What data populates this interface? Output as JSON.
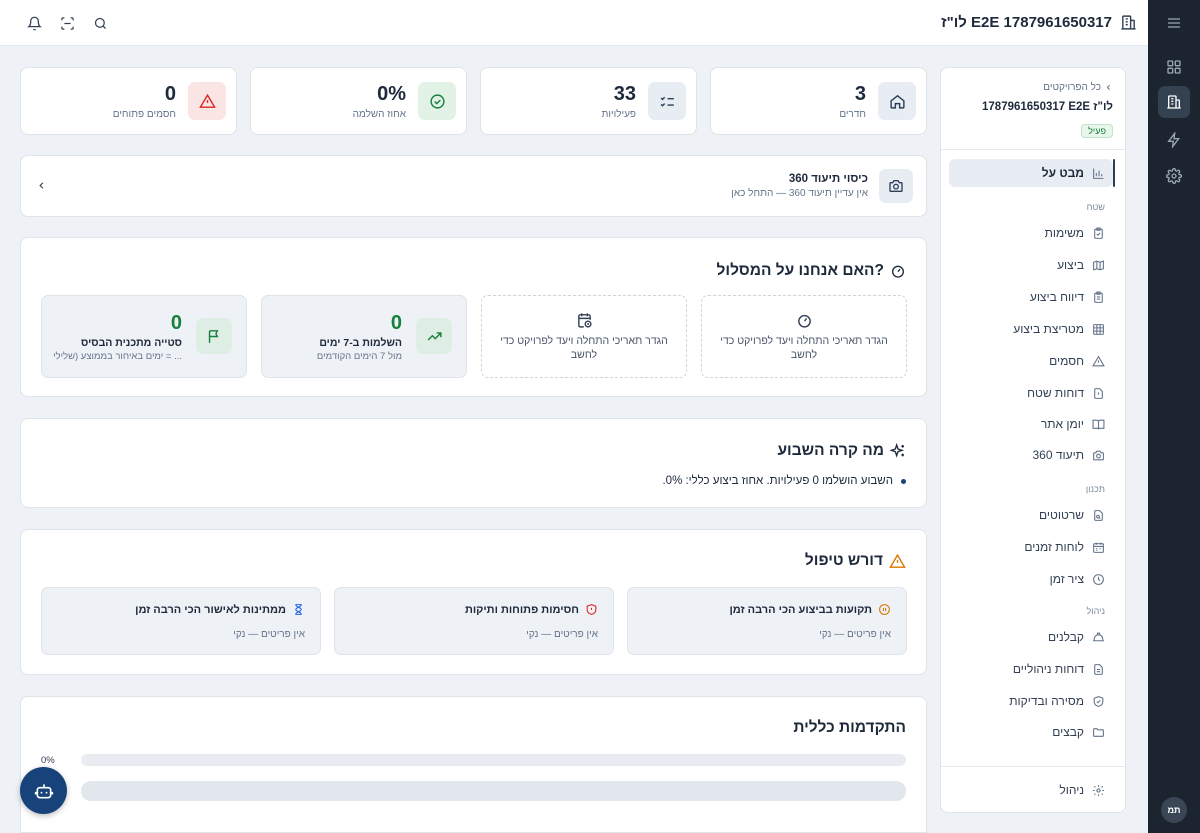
{
  "header": {
    "title": "1787961650317 E2E לו\"ז"
  },
  "sidebar": {
    "back_link": "כל הפרויקטים",
    "project_name": "1787961650317 E2E לו\"ז",
    "status": "פעיל",
    "overview": "מבט על",
    "groups": {
      "field": "שטח",
      "planning": "תכנון",
      "management": "ניהול"
    },
    "field_items": [
      "משימות",
      "ביצוע",
      "דיווח ביצוע",
      "מטריצת ביצוע",
      "חסמים",
      "דוחות שטח",
      "יומן אתר",
      "360 תיעוד"
    ],
    "planning_items": [
      "שרטוטים",
      "לוחות זמנים",
      "ציר זמן"
    ],
    "management_items": [
      "קבלנים",
      "דוחות ניהוליים",
      "מסירה ובדיקות",
      "קבצים"
    ],
    "admin": "ניהול"
  },
  "rail": {
    "avatar": "תמ"
  },
  "stats": [
    {
      "value": "3",
      "label": "חדרים",
      "icon": "home-icon"
    },
    {
      "value": "33",
      "label": "פעילויות",
      "icon": "checklist-icon"
    },
    {
      "value": "0%",
      "label": "אחוז השלמה",
      "icon": "check-circle-icon"
    },
    {
      "value": "0",
      "label": "חסמים פתוחים",
      "icon": "alert-triangle-icon"
    }
  ],
  "coverage": {
    "title": "כיסוי תיעוד 360",
    "subtitle": "אין עדיין תיעוד 360 — התחל כאן"
  },
  "on_track": {
    "title": "האם אנחנו על המסלול?",
    "tiles": {
      "set_dates_1": "הגדר תאריכי התחלה ויעד לפרויקט כדי לחשב",
      "set_dates_2": "הגדר תאריכי התחלה ויעד לפרויקט כדי לחשב",
      "completions": {
        "value": "0",
        "label": "השלמות ב-7 ימים",
        "sub": "מול 7 הימים הקודמים"
      },
      "deviation": {
        "value": "0",
        "label": "סטייה מתכנית הבסיס",
        "sub": "ימים באיחור בממוצע (שלילי = ..."
      }
    }
  },
  "week": {
    "title": "מה קרה השבוע",
    "bullet": "השבוע הושלמו 0 פעילויות. אחוז ביצוע כללי: 0%."
  },
  "attention": {
    "title": "דורש טיפול",
    "cards": [
      {
        "title": "תקועות בביצוע הכי הרבה זמן",
        "sub": "אין פריטים — נקי"
      },
      {
        "title": "חסימות פתוחות ותיקות",
        "sub": "אין פריטים — נקי"
      },
      {
        "title": "ממתינות לאישור הכי הרבה זמן",
        "sub": "אין פריטים — נקי"
      }
    ]
  },
  "progress": {
    "title": "התקדמות כללית",
    "percent_label": "0%",
    "completion": 0
  },
  "colors": {
    "accent": "#2c3e57",
    "success": "#16803c",
    "danger": "#dc2626",
    "warning": "#d97706",
    "fab": "#17437a"
  }
}
